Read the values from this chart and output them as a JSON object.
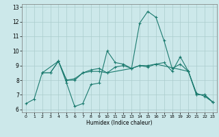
{
  "xlabel": "Humidex (Indice chaleur)",
  "xlim": [
    -0.5,
    23.5
  ],
  "ylim": [
    5.8,
    13.2
  ],
  "yticks": [
    6,
    7,
    8,
    9,
    10,
    11,
    12,
    13
  ],
  "xticks": [
    0,
    1,
    2,
    3,
    4,
    5,
    6,
    7,
    8,
    9,
    10,
    11,
    12,
    13,
    14,
    15,
    16,
    17,
    18,
    19,
    20,
    21,
    22,
    23
  ],
  "bg_color": "#cce8ea",
  "line_color": "#1a7a6e",
  "grid_color": "#aacccc",
  "series": [
    {
      "x": [
        0,
        1,
        2,
        3,
        4,
        5,
        6,
        7,
        8,
        9,
        10,
        11,
        12,
        13,
        14,
        15,
        16,
        17,
        18,
        19,
        20,
        21,
        22,
        23
      ],
      "y": [
        6.4,
        6.7,
        8.5,
        8.5,
        9.3,
        7.8,
        6.2,
        6.4,
        7.7,
        7.8,
        10.0,
        9.2,
        9.1,
        8.8,
        11.9,
        12.7,
        12.3,
        10.7,
        8.8,
        9.1,
        8.6,
        7.0,
        7.0,
        6.5
      ]
    },
    {
      "x": [
        2,
        3,
        4,
        5,
        6,
        7,
        8,
        9,
        10,
        11,
        12,
        13,
        14,
        15,
        16,
        17,
        18,
        19,
        20,
        21,
        22,
        23
      ],
      "y": [
        8.5,
        8.5,
        9.3,
        8.0,
        8.0,
        8.5,
        8.7,
        8.8,
        8.5,
        8.9,
        9.0,
        8.8,
        9.0,
        9.0,
        9.1,
        9.2,
        8.6,
        9.6,
        8.6,
        7.1,
        6.9,
        6.5
      ]
    },
    {
      "x": [
        2,
        4,
        5,
        6,
        7,
        8,
        9,
        10,
        13,
        14,
        15,
        16,
        20,
        21,
        22,
        23
      ],
      "y": [
        8.5,
        9.3,
        8.0,
        8.1,
        8.5,
        8.6,
        8.6,
        8.5,
        8.8,
        9.0,
        8.9,
        9.1,
        8.6,
        7.0,
        7.0,
        6.5
      ]
    }
  ]
}
